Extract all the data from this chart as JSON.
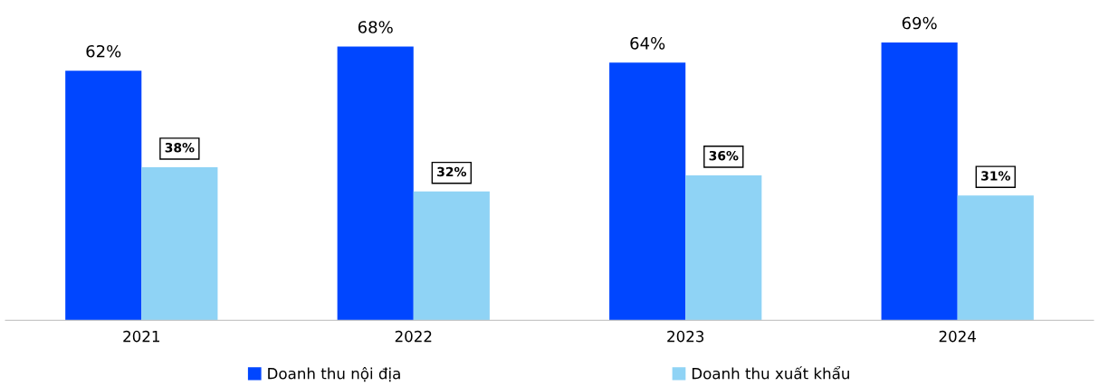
{
  "chart_data": {
    "type": "bar",
    "categories": [
      "2021",
      "2022",
      "2023",
      "2024"
    ],
    "series": [
      {
        "name": "Doanh thu nội địa",
        "color": "#0046ff",
        "values": [
          62,
          68,
          64,
          69
        ],
        "value_labels": [
          "62%",
          "68%",
          "64%",
          "69%"
        ]
      },
      {
        "name": "Doanh thu xuất khẩu",
        "color": "#8fd3f5",
        "values": [
          38,
          32,
          36,
          31
        ],
        "value_labels": [
          "38%",
          "32%",
          "36%",
          "31%"
        ]
      }
    ],
    "tick_labels": "x",
    "grid": false,
    "legend": "bottom"
  }
}
